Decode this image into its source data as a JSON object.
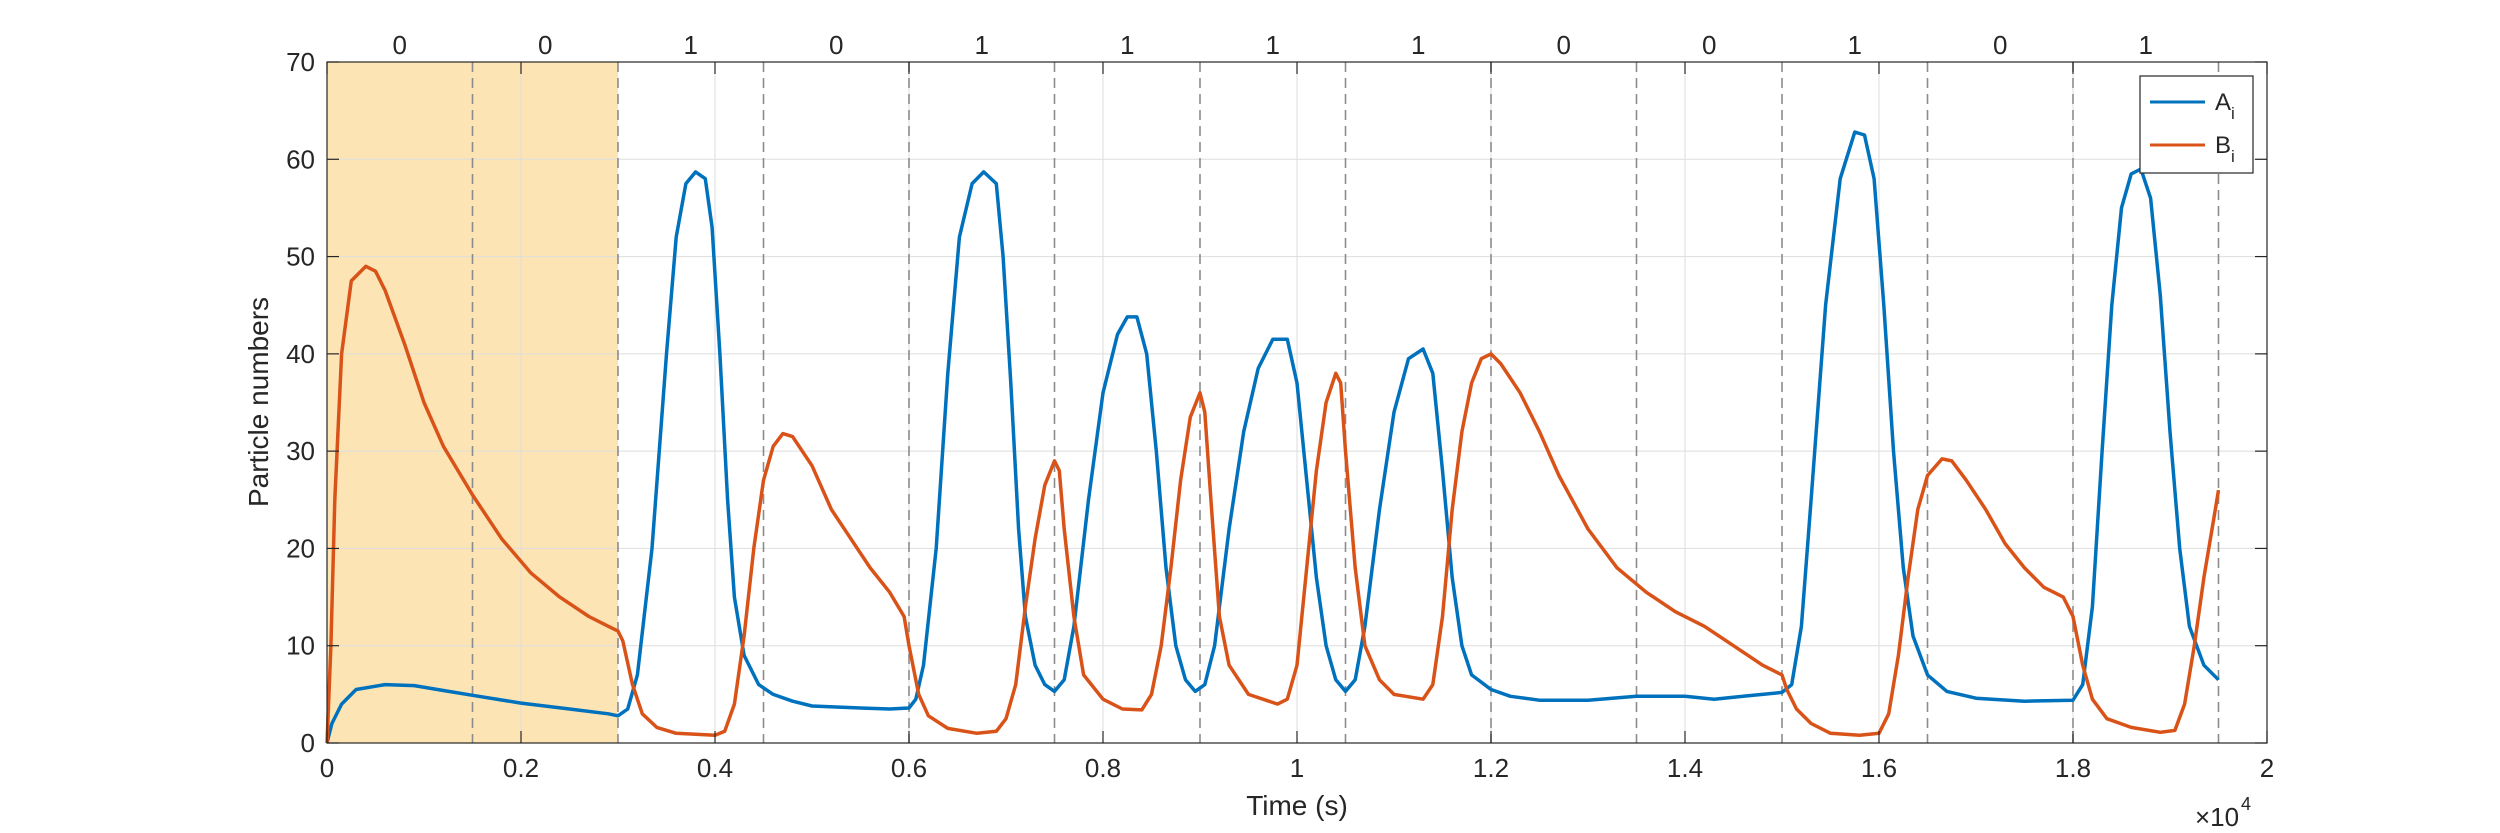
{
  "chart_data": {
    "type": "line",
    "title": "",
    "xlabel": "Time (s)",
    "ylabel": "Particle numbers",
    "x_multiplier_label": "×10",
    "x_multiplier_exp": "4",
    "xlim": [
      0,
      2
    ],
    "ylim": [
      0,
      70
    ],
    "x_ticks": [
      0,
      0.2,
      0.4,
      0.6,
      0.8,
      1,
      1.2,
      1.4,
      1.6,
      1.8,
      2
    ],
    "x_tick_labels": [
      "0",
      "0.2",
      "0.4",
      "0.6",
      "0.8",
      "1",
      "1.2",
      "1.4",
      "1.6",
      "1.8",
      "2"
    ],
    "y_ticks": [
      0,
      10,
      20,
      30,
      40,
      50,
      60,
      70
    ],
    "y_tick_labels": [
      "0",
      "10",
      "20",
      "30",
      "40",
      "50",
      "60",
      "70"
    ],
    "grid": true,
    "legend_position": "top-right",
    "highlight_region": {
      "x": [
        0,
        0.3
      ],
      "color": "#fde4b5"
    },
    "segment_boundaries": [
      0.15,
      0.3,
      0.45,
      0.6,
      0.75,
      0.9,
      1.05,
      1.2,
      1.35,
      1.5,
      1.65,
      1.8,
      1.95
    ],
    "segment_labels": [
      {
        "x": 0.075,
        "label": "0"
      },
      {
        "x": 0.225,
        "label": "0"
      },
      {
        "x": 0.375,
        "label": "1"
      },
      {
        "x": 0.525,
        "label": "0"
      },
      {
        "x": 0.675,
        "label": "1"
      },
      {
        "x": 0.825,
        "label": "1"
      },
      {
        "x": 0.975,
        "label": "1"
      },
      {
        "x": 1.125,
        "label": "1"
      },
      {
        "x": 1.275,
        "label": "0"
      },
      {
        "x": 1.425,
        "label": "0"
      },
      {
        "x": 1.575,
        "label": "1"
      },
      {
        "x": 1.725,
        "label": "0"
      },
      {
        "x": 1.875,
        "label": "1"
      }
    ],
    "series": [
      {
        "name": "A",
        "name_sub": "i",
        "color": "#0072BD",
        "points": [
          [
            0,
            0
          ],
          [
            0.005,
            2
          ],
          [
            0.015,
            4
          ],
          [
            0.03,
            5.5
          ],
          [
            0.06,
            6
          ],
          [
            0.09,
            5.9
          ],
          [
            0.12,
            5.4
          ],
          [
            0.15,
            4.9
          ],
          [
            0.2,
            4.1
          ],
          [
            0.25,
            3.5
          ],
          [
            0.29,
            3.0
          ],
          [
            0.3,
            2.8
          ],
          [
            0.31,
            3.5
          ],
          [
            0.32,
            7
          ],
          [
            0.335,
            20
          ],
          [
            0.35,
            40
          ],
          [
            0.36,
            52
          ],
          [
            0.37,
            57.5
          ],
          [
            0.38,
            58.7
          ],
          [
            0.39,
            58
          ],
          [
            0.397,
            53
          ],
          [
            0.405,
            40
          ],
          [
            0.413,
            25
          ],
          [
            0.42,
            15
          ],
          [
            0.43,
            9
          ],
          [
            0.445,
            6
          ],
          [
            0.46,
            5
          ],
          [
            0.48,
            4.3
          ],
          [
            0.5,
            3.8
          ],
          [
            0.55,
            3.6
          ],
          [
            0.58,
            3.5
          ],
          [
            0.6,
            3.6
          ],
          [
            0.607,
            4.5
          ],
          [
            0.615,
            8
          ],
          [
            0.628,
            20
          ],
          [
            0.64,
            38
          ],
          [
            0.652,
            52
          ],
          [
            0.665,
            57.5
          ],
          [
            0.677,
            58.7
          ],
          [
            0.69,
            57.5
          ],
          [
            0.697,
            50
          ],
          [
            0.705,
            37
          ],
          [
            0.713,
            22
          ],
          [
            0.72,
            13
          ],
          [
            0.73,
            8
          ],
          [
            0.74,
            6
          ],
          [
            0.75,
            5.3
          ],
          [
            0.76,
            6.5
          ],
          [
            0.77,
            12
          ],
          [
            0.785,
            25
          ],
          [
            0.8,
            36
          ],
          [
            0.815,
            42
          ],
          [
            0.825,
            43.8
          ],
          [
            0.835,
            43.8
          ],
          [
            0.845,
            40
          ],
          [
            0.855,
            30
          ],
          [
            0.865,
            18
          ],
          [
            0.875,
            10
          ],
          [
            0.885,
            6.5
          ],
          [
            0.895,
            5.3
          ],
          [
            0.905,
            6
          ],
          [
            0.915,
            10
          ],
          [
            0.93,
            22
          ],
          [
            0.945,
            32
          ],
          [
            0.96,
            38.5
          ],
          [
            0.975,
            41.5
          ],
          [
            0.99,
            41.5
          ],
          [
            1.0,
            37
          ],
          [
            1.01,
            27
          ],
          [
            1.02,
            17
          ],
          [
            1.03,
            10
          ],
          [
            1.04,
            6.5
          ],
          [
            1.05,
            5.3
          ],
          [
            1.06,
            6.5
          ],
          [
            1.07,
            12
          ],
          [
            1.085,
            24
          ],
          [
            1.1,
            34
          ],
          [
            1.115,
            39.5
          ],
          [
            1.13,
            40.5
          ],
          [
            1.14,
            38
          ],
          [
            1.15,
            28
          ],
          [
            1.16,
            17
          ],
          [
            1.17,
            10
          ],
          [
            1.18,
            7
          ],
          [
            1.2,
            5.5
          ],
          [
            1.22,
            4.8
          ],
          [
            1.25,
            4.4
          ],
          [
            1.3,
            4.4
          ],
          [
            1.35,
            4.8
          ],
          [
            1.4,
            4.8
          ],
          [
            1.43,
            4.5
          ],
          [
            1.46,
            4.8
          ],
          [
            1.5,
            5.2
          ],
          [
            1.51,
            6
          ],
          [
            1.52,
            12
          ],
          [
            1.53,
            25
          ],
          [
            1.545,
            45
          ],
          [
            1.56,
            58
          ],
          [
            1.575,
            62.8
          ],
          [
            1.585,
            62.5
          ],
          [
            1.595,
            58
          ],
          [
            1.605,
            45
          ],
          [
            1.615,
            30
          ],
          [
            1.625,
            18
          ],
          [
            1.635,
            11
          ],
          [
            1.65,
            7
          ],
          [
            1.67,
            5.3
          ],
          [
            1.7,
            4.6
          ],
          [
            1.75,
            4.3
          ],
          [
            1.8,
            4.4
          ],
          [
            1.81,
            6
          ],
          [
            1.82,
            14
          ],
          [
            1.83,
            30
          ],
          [
            1.84,
            45
          ],
          [
            1.85,
            55
          ],
          [
            1.86,
            58.5
          ],
          [
            1.87,
            59
          ],
          [
            1.88,
            56
          ],
          [
            1.89,
            46
          ],
          [
            1.9,
            32
          ],
          [
            1.91,
            20
          ],
          [
            1.92,
            12
          ],
          [
            1.935,
            8
          ],
          [
            1.95,
            6.5
          ]
        ]
      },
      {
        "name": "B",
        "name_sub": "i",
        "color": "#D95319",
        "points": [
          [
            0,
            0
          ],
          [
            0.004,
            10
          ],
          [
            0.008,
            25
          ],
          [
            0.015,
            40
          ],
          [
            0.025,
            47.5
          ],
          [
            0.04,
            49
          ],
          [
            0.05,
            48.5
          ],
          [
            0.06,
            46.5
          ],
          [
            0.08,
            41
          ],
          [
            0.1,
            35
          ],
          [
            0.12,
            30.5
          ],
          [
            0.15,
            25.5
          ],
          [
            0.18,
            21
          ],
          [
            0.21,
            17.5
          ],
          [
            0.24,
            15
          ],
          [
            0.27,
            13
          ],
          [
            0.29,
            12
          ],
          [
            0.3,
            11.5
          ],
          [
            0.305,
            10.5
          ],
          [
            0.315,
            6
          ],
          [
            0.325,
            3
          ],
          [
            0.34,
            1.6
          ],
          [
            0.36,
            1
          ],
          [
            0.4,
            0.8
          ],
          [
            0.41,
            1.2
          ],
          [
            0.42,
            4
          ],
          [
            0.43,
            11
          ],
          [
            0.44,
            20
          ],
          [
            0.45,
            27
          ],
          [
            0.46,
            30.5
          ],
          [
            0.47,
            31.8
          ],
          [
            0.48,
            31.5
          ],
          [
            0.5,
            28.5
          ],
          [
            0.52,
            24
          ],
          [
            0.54,
            21
          ],
          [
            0.56,
            18
          ],
          [
            0.58,
            15.5
          ],
          [
            0.595,
            13
          ],
          [
            0.6,
            10
          ],
          [
            0.61,
            5
          ],
          [
            0.62,
            2.8
          ],
          [
            0.64,
            1.5
          ],
          [
            0.67,
            1
          ],
          [
            0.69,
            1.2
          ],
          [
            0.7,
            2.5
          ],
          [
            0.71,
            6
          ],
          [
            0.72,
            14
          ],
          [
            0.73,
            21
          ],
          [
            0.74,
            26.5
          ],
          [
            0.75,
            29
          ],
          [
            0.755,
            28
          ],
          [
            0.76,
            22
          ],
          [
            0.77,
            13
          ],
          [
            0.78,
            7
          ],
          [
            0.8,
            4.5
          ],
          [
            0.82,
            3.5
          ],
          [
            0.84,
            3.4
          ],
          [
            0.85,
            5
          ],
          [
            0.86,
            10
          ],
          [
            0.87,
            18
          ],
          [
            0.88,
            27
          ],
          [
            0.89,
            33.5
          ],
          [
            0.9,
            36
          ],
          [
            0.905,
            34
          ],
          [
            0.912,
            24
          ],
          [
            0.92,
            13
          ],
          [
            0.93,
            8
          ],
          [
            0.95,
            5
          ],
          [
            0.98,
            4
          ],
          [
            0.99,
            4.5
          ],
          [
            1.0,
            8
          ],
          [
            1.01,
            18
          ],
          [
            1.02,
            28
          ],
          [
            1.03,
            35
          ],
          [
            1.04,
            38
          ],
          [
            1.045,
            37
          ],
          [
            1.05,
            30
          ],
          [
            1.06,
            18
          ],
          [
            1.07,
            10
          ],
          [
            1.085,
            6.5
          ],
          [
            1.1,
            5
          ],
          [
            1.13,
            4.5
          ],
          [
            1.14,
            6
          ],
          [
            1.15,
            13
          ],
          [
            1.16,
            24
          ],
          [
            1.17,
            32
          ],
          [
            1.18,
            37
          ],
          [
            1.19,
            39.5
          ],
          [
            1.2,
            40
          ],
          [
            1.21,
            39
          ],
          [
            1.23,
            36
          ],
          [
            1.25,
            32
          ],
          [
            1.27,
            27.5
          ],
          [
            1.3,
            22
          ],
          [
            1.33,
            18
          ],
          [
            1.36,
            15.5
          ],
          [
            1.39,
            13.5
          ],
          [
            1.42,
            12
          ],
          [
            1.45,
            10
          ],
          [
            1.48,
            8
          ],
          [
            1.5,
            7
          ],
          [
            1.505,
            5.5
          ],
          [
            1.515,
            3.5
          ],
          [
            1.53,
            2
          ],
          [
            1.55,
            1
          ],
          [
            1.58,
            0.8
          ],
          [
            1.6,
            1
          ],
          [
            1.61,
            3
          ],
          [
            1.62,
            9
          ],
          [
            1.63,
            17
          ],
          [
            1.64,
            24
          ],
          [
            1.65,
            27.5
          ],
          [
            1.665,
            29.2
          ],
          [
            1.675,
            29
          ],
          [
            1.69,
            27
          ],
          [
            1.71,
            24
          ],
          [
            1.73,
            20.5
          ],
          [
            1.75,
            18
          ],
          [
            1.77,
            16
          ],
          [
            1.79,
            15
          ],
          [
            1.8,
            13
          ],
          [
            1.81,
            8
          ],
          [
            1.82,
            4.5
          ],
          [
            1.835,
            2.5
          ],
          [
            1.86,
            1.6
          ],
          [
            1.89,
            1.1
          ],
          [
            1.905,
            1.3
          ],
          [
            1.915,
            4
          ],
          [
            1.925,
            10
          ],
          [
            1.935,
            17
          ],
          [
            1.945,
            23
          ],
          [
            1.95,
            26
          ]
        ]
      }
    ]
  }
}
